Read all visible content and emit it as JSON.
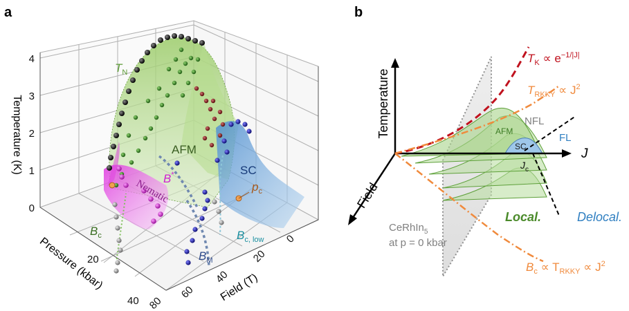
{
  "panel_a": {
    "label": "a",
    "axes": {
      "z_title": "Temperature (K)",
      "pressure_title": "Pressure (kbar)",
      "field_title": "Field (T)",
      "z_ticks": [
        "0",
        "1",
        "2",
        "3",
        "4"
      ],
      "pressure_ticks": [
        "20",
        "40"
      ],
      "field_ticks": [
        "0",
        "20",
        "40",
        "60",
        "80"
      ]
    },
    "labels": {
      "tn": "T",
      "tn_sub": "N",
      "afm": "AFM",
      "sc": "SC",
      "nematic": "Nematic",
      "bstar": "B",
      "bstar_sup": "*",
      "pc": "p",
      "pc_sub": "c",
      "bc": "B",
      "bc_sub": "c",
      "bclow": "B",
      "bclow_sub": "c, low",
      "bm": "B",
      "bm_sub": "M"
    },
    "colors": {
      "afm_fill": "#8fc45a",
      "sc_fill": "#5b9bd5",
      "nematic_fill": "#e040e0",
      "black_points": "#111111",
      "green_points": "#2e7d1e",
      "red_points": "#8b1a1a",
      "blue_points": "#1a1aa8",
      "magenta_points": "#cc22cc",
      "gray_points": "#9a9a9a",
      "pc_marker": "#f0a050"
    }
  },
  "panel_b": {
    "label": "b",
    "axes": {
      "temperature": "Temperature",
      "field": "Field",
      "j": "J"
    },
    "labels": {
      "tk": "T",
      "tk_sub": "K",
      "tk_rest": " ∝ e",
      "tk_sup": "−1/|J|",
      "trkky": "T",
      "trkky_sub": "RKKY",
      "trkky_rest": " ∝ J",
      "trkky_sup": "2",
      "nfl": "NFL",
      "fl": "FL",
      "afm": "AFM",
      "sc": "SC",
      "jc": "J",
      "jc_sub": "c",
      "local": "Local.",
      "delocal": "Delocal.",
      "cerhin": "CeRhIn",
      "cerhin_sub": "5",
      "cerhin_line2": "at p = 0 kbar",
      "bc": "B",
      "bc_sub": "c",
      "bc_rest1": " ∝ T",
      "bc_sub2": "RKKY",
      "bc_rest2": " ∝ J",
      "bc_sup": "2"
    },
    "colors": {
      "tk_line": "#c0121e",
      "trkky_line": "#f08a3c",
      "afm_dome": "#7fbf5a",
      "sc_dome": "#6fa8dc",
      "local_text": "#4a8a2a",
      "delocal_text": "#2f7fc1",
      "cerhin_text": "#808080"
    }
  }
}
